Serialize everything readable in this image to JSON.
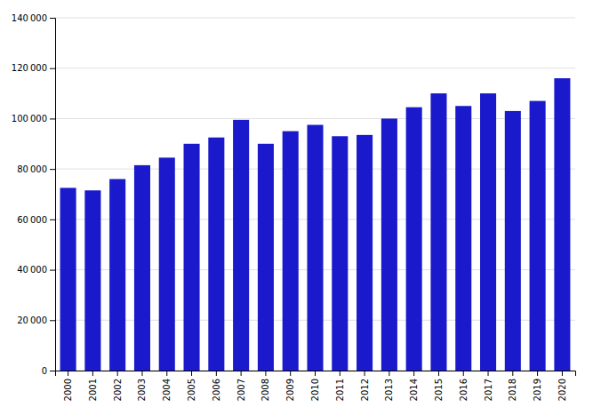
{
  "chart_data": {
    "type": "bar",
    "categories": [
      "2000",
      "2001",
      "2002",
      "2003",
      "2004",
      "2005",
      "2006",
      "2007",
      "2008",
      "2009",
      "2010",
      "2011",
      "2012",
      "2013",
      "2014",
      "2015",
      "2016",
      "2017",
      "2018",
      "2019",
      "2020"
    ],
    "values": [
      72500,
      71500,
      76000,
      81500,
      84500,
      90000,
      92500,
      99500,
      90000,
      95000,
      97500,
      93000,
      93500,
      100000,
      104500,
      110000,
      105000,
      110000,
      103000,
      107000,
      116000
    ],
    "color": "#1a1acc",
    "ylim": [
      0,
      140000
    ],
    "yticks": [
      0,
      {
        "value": 20000,
        "label": "20 000"
      },
      {
        "value": 40000,
        "label": "40 000"
      },
      {
        "value": 60000,
        "label": "60 000"
      },
      {
        "value": 80000,
        "label": "80 000"
      },
      {
        "value": 100000,
        "label": "100 000"
      },
      {
        "value": 120000,
        "label": "120 000"
      },
      {
        "value": 140000,
        "label": "140 000"
      }
    ],
    "grid": true
  }
}
